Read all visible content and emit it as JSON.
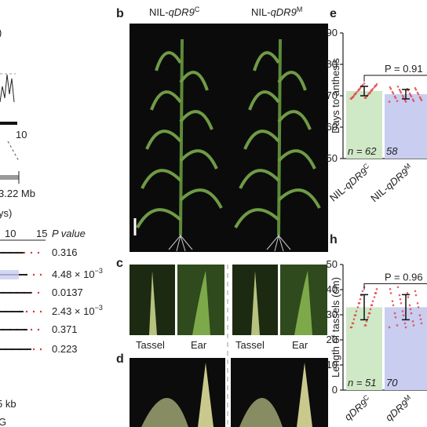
{
  "left_panel": {
    "top_fragment": ")",
    "scale_tick": "10",
    "region_label": "3.22 Mb",
    "axis_title_fragment": "ys)",
    "axis_ticks": [
      "10",
      "15"
    ],
    "p_value_header": "P value",
    "p_values": [
      {
        "text": "0.316"
      },
      {
        "text": "4.48 × 10",
        "exponent": "−3"
      },
      {
        "text": "0.0137"
      },
      {
        "text": "2.43 × 10",
        "exponent": "−3"
      },
      {
        "text": "0.371"
      },
      {
        "text": "0.223"
      }
    ],
    "scale_bar": "5 kb",
    "bottom_fragment": "G"
  },
  "panel_b": {
    "label": "b",
    "genotypes": [
      {
        "prefix": "NIL-",
        "gene": "qDR9",
        "allele": "C"
      },
      {
        "prefix": "NIL-",
        "gene": "qDR9",
        "allele": "M"
      }
    ]
  },
  "panel_c": {
    "label": "c",
    "organs": [
      "Tassel",
      "Ear",
      "Tassel",
      "Ear"
    ]
  },
  "panel_d": {
    "label": "d"
  },
  "panel_e": {
    "label": "e",
    "y_label": "Days to anthesis",
    "ylim": [
      50,
      90
    ],
    "yticks": [
      50,
      60,
      70,
      80,
      90
    ],
    "values": [
      71.5,
      70.5
    ],
    "errors": [
      1.5,
      1.5
    ],
    "colors": [
      "#cfe8c6",
      "#c9cdf0"
    ],
    "annotation": "P = 0.91",
    "n_labels": [
      "n = 62",
      "58"
    ],
    "categories": [
      {
        "prefix": "NIL-",
        "gene": "qDR9",
        "allele": "C"
      },
      {
        "prefix": "NIL-",
        "gene": "qDR9",
        "allele": "M"
      }
    ]
  },
  "panel_h": {
    "label": "h",
    "y_label": "Length of tassels (cm)",
    "ylim": [
      0,
      50
    ],
    "yticks": [
      0,
      10,
      20,
      30,
      40,
      50
    ],
    "values": [
      33,
      33
    ],
    "errors": [
      5,
      5
    ],
    "colors": [
      "#cfe8c6",
      "#c9cdf0"
    ],
    "annotation": "P = 0.96",
    "n_labels": [
      "n = 51",
      "70"
    ],
    "categories": [
      {
        "gene": "qDR9",
        "allele": "C"
      },
      {
        "gene": "qDR9",
        "allele": "M"
      }
    ]
  }
}
